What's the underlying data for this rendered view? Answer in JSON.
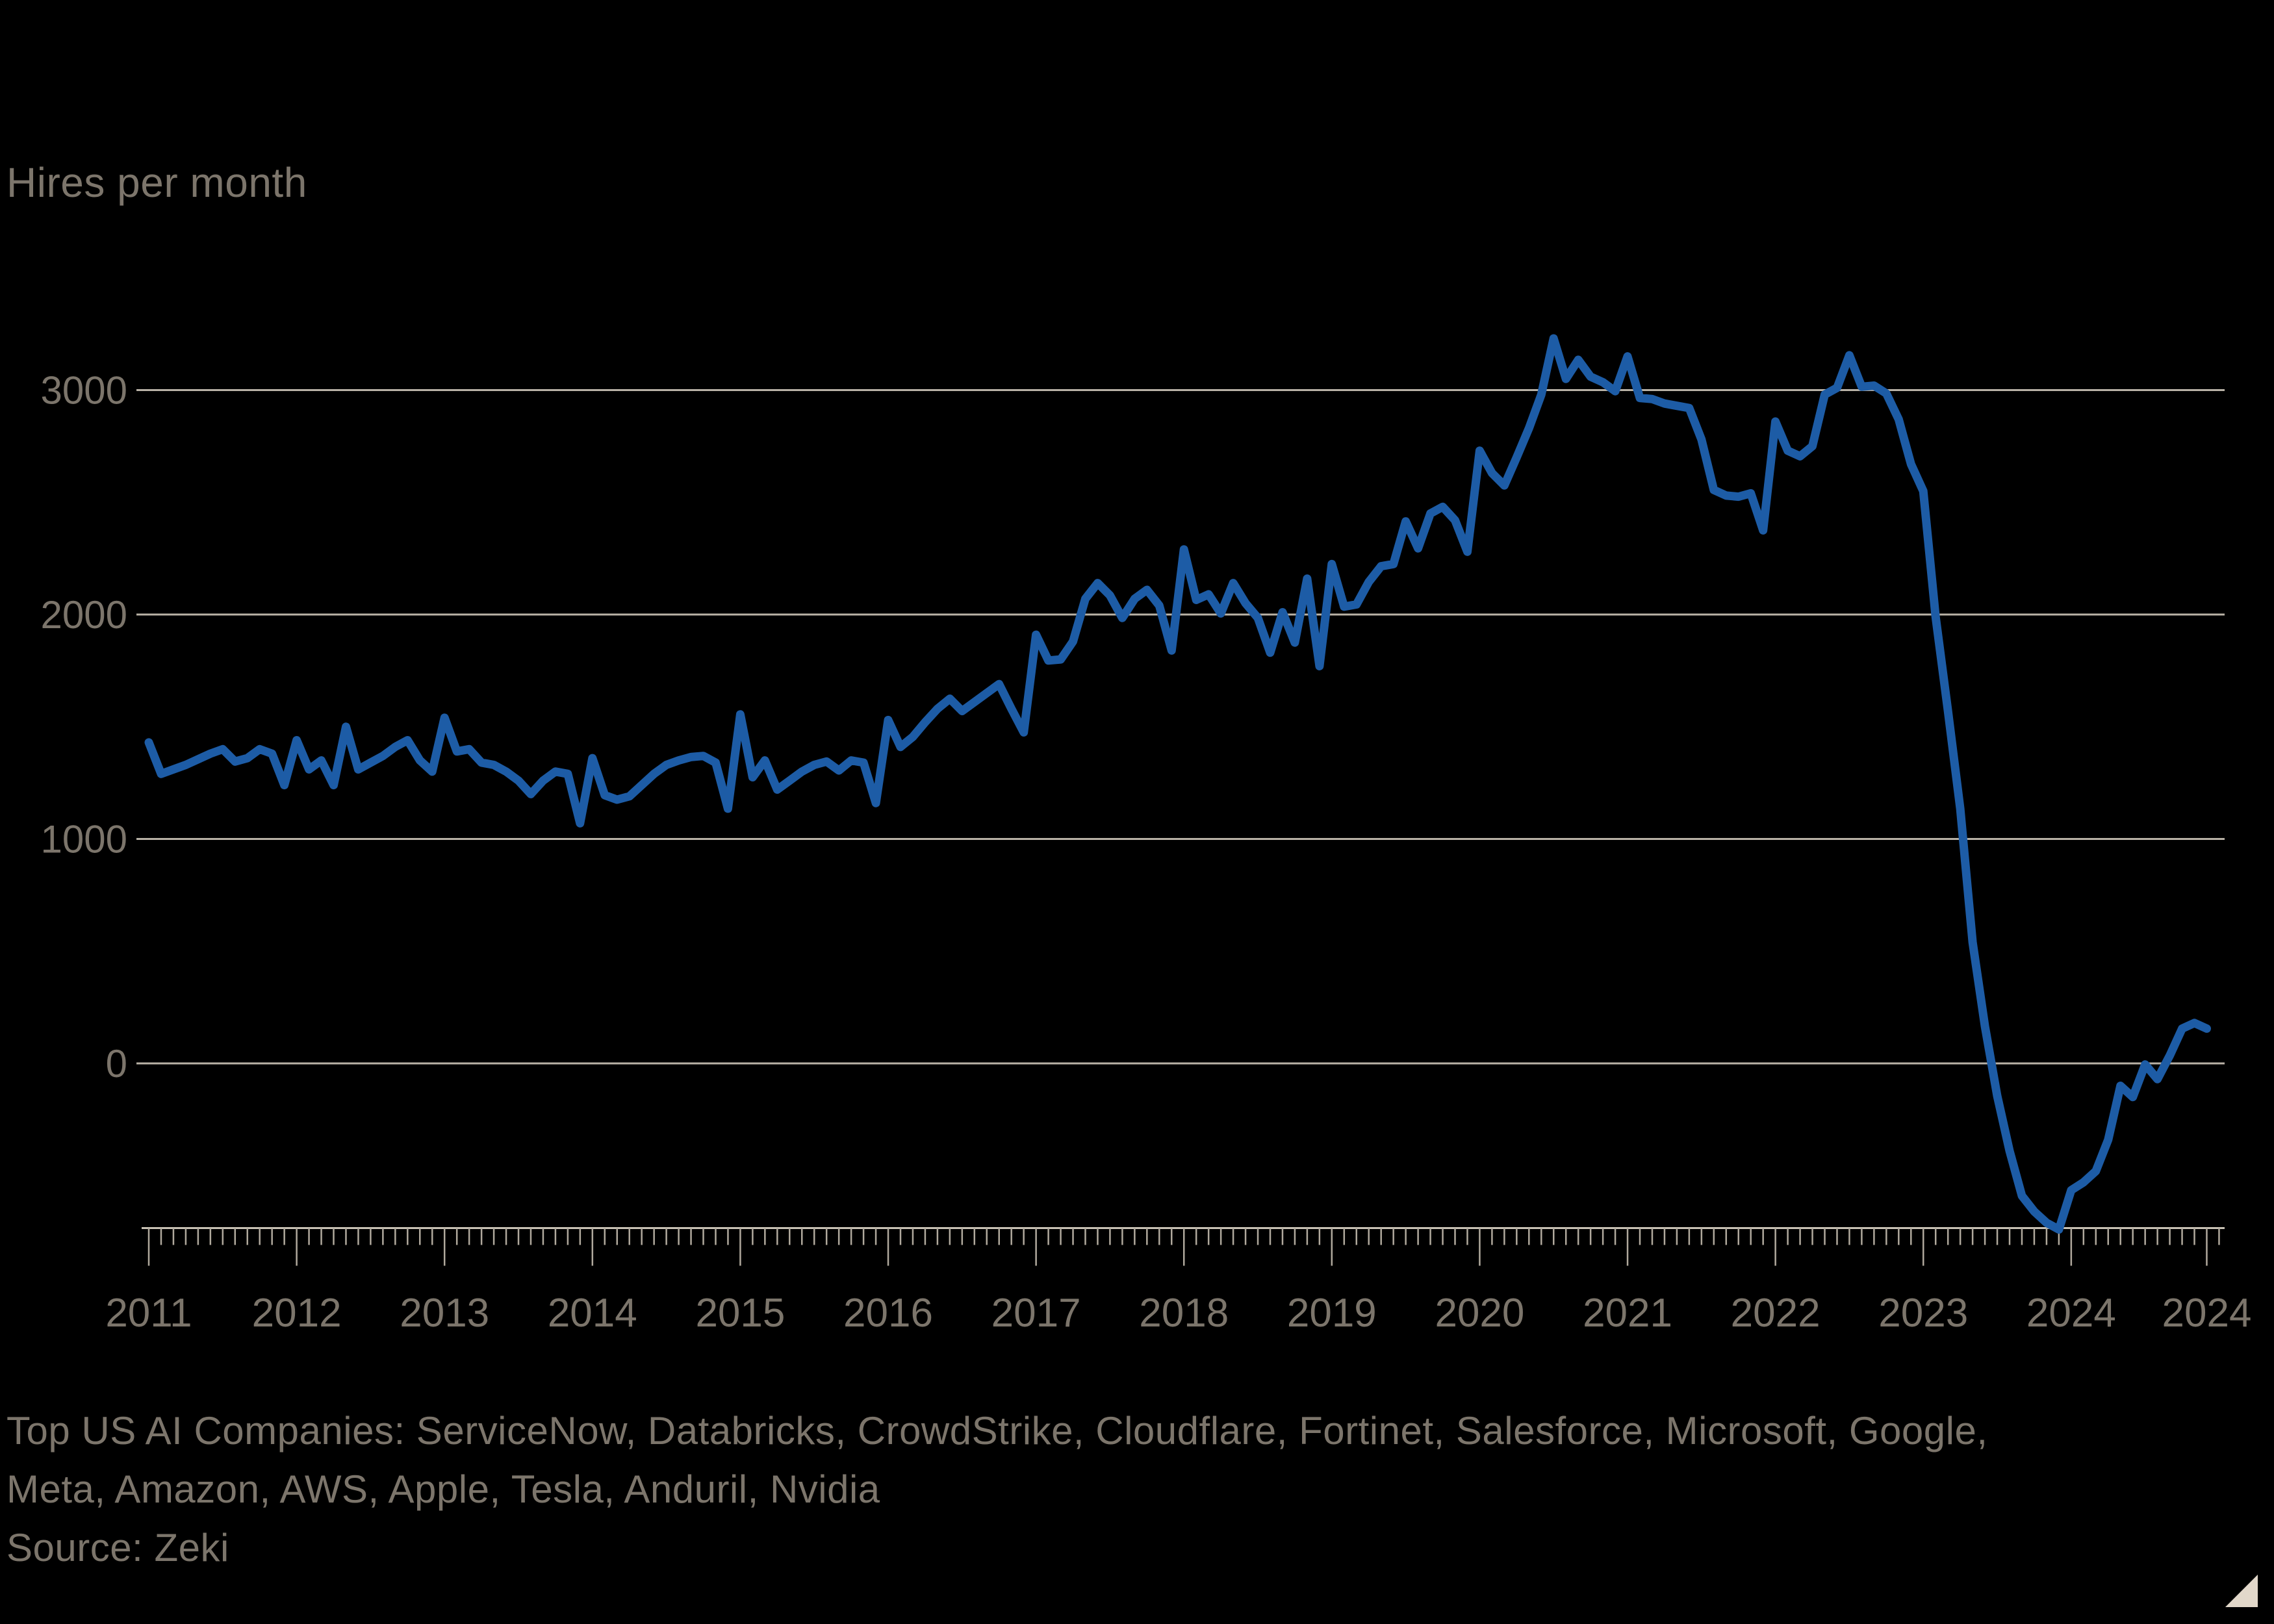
{
  "page": {
    "title": "Hires per month"
  },
  "colors": {
    "background": "#000000",
    "line": "#1d5ca6",
    "grid": "#b9b2a6",
    "axis": "#c9c2b5",
    "tick": "#b0a99d",
    "text": "#7c756b",
    "corner_triangle": "#e2d8ca"
  },
  "chart_data": {
    "type": "line",
    "title": "Hires per month",
    "xlabel": "",
    "ylabel": "Hires per month",
    "x_start": "2011-01",
    "x_end": "2024-12",
    "frequency": "monthly",
    "grid": "horizontal",
    "legend_position": "none",
    "y_ticks": [
      0,
      1000,
      2000,
      3000
    ],
    "ylim": [
      -800,
      3300
    ],
    "x_tick_labels": [
      "2011",
      "2012",
      "2013",
      "2014",
      "2015",
      "2016",
      "2017",
      "2018",
      "2019",
      "2020",
      "2021",
      "2022",
      "2023",
      "2024",
      "2024"
    ],
    "series": [
      {
        "name": "Hires per month",
        "color": "#1d5ca6",
        "values": [
          1430,
          1290,
          1310,
          1330,
          1355,
          1380,
          1400,
          1345,
          1360,
          1400,
          1380,
          1240,
          1440,
          1310,
          1350,
          1240,
          1500,
          1310,
          1340,
          1370,
          1410,
          1440,
          1350,
          1300,
          1540,
          1390,
          1400,
          1340,
          1330,
          1300,
          1260,
          1200,
          1260,
          1300,
          1290,
          1070,
          1360,
          1195,
          1175,
          1190,
          1240,
          1290,
          1330,
          1350,
          1365,
          1370,
          1340,
          1135,
          1555,
          1275,
          1350,
          1220,
          1260,
          1300,
          1330,
          1345,
          1305,
          1350,
          1340,
          1160,
          1530,
          1410,
          1455,
          1520,
          1580,
          1625,
          1570,
          1610,
          1650,
          1690,
          1580,
          1475,
          1910,
          1795,
          1800,
          1880,
          2070,
          2140,
          2085,
          1985,
          2070,
          2110,
          2040,
          1840,
          2290,
          2065,
          2090,
          2005,
          2140,
          2050,
          1985,
          1830,
          2010,
          1875,
          2160,
          1770,
          2225,
          2035,
          2045,
          2145,
          2215,
          2225,
          2415,
          2295,
          2450,
          2480,
          2420,
          2280,
          2730,
          2630,
          2575,
          2700,
          2830,
          2980,
          3230,
          3050,
          3135,
          3060,
          3035,
          2995,
          3150,
          2965,
          2960,
          2940,
          2930,
          2920,
          2780,
          2555,
          2530,
          2525,
          2540,
          2375,
          2860,
          2730,
          2705,
          2750,
          2980,
          3010,
          3155,
          3015,
          3020,
          2985,
          2870,
          2670,
          2550,
          1990,
          1570,
          1135,
          540,
          165,
          -145,
          -390,
          -590,
          -660,
          -710,
          -740,
          -565,
          -530,
          -480,
          -340,
          -100,
          -150,
          -5,
          -70,
          35,
          155,
          180,
          155
        ]
      }
    ],
    "source": "Zeki",
    "note": "Top US AI Companies: ServiceNow, Databricks, CrowdStrike, Cloudflare, Fortinet, Salesforce, Microsoft, Google, Meta, Amazon, AWS, Apple, Tesla, Anduril, Nvidia"
  },
  "footer": {
    "companies_line1": "Top US AI Companies: ServiceNow, Databricks, CrowdStrike, Cloudflare, Fortinet, Salesforce, Microsoft, Google,",
    "companies_line2": "Meta, Amazon, AWS, Apple, Tesla, Anduril, Nvidia",
    "source": "Source: Zeki"
  }
}
